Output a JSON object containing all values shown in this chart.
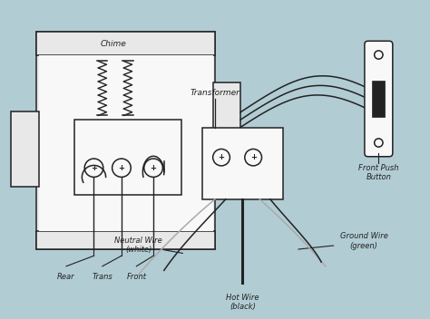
{
  "bg_color": "#b2ccd4",
  "line_color": "#222222",
  "fill_light": "#e8e8e8",
  "fill_white": "#f8f8f8",
  "labels": {
    "chime": "Chime",
    "rear": "Rear",
    "trans": "Trans",
    "front": "Front",
    "transformer": "Transformer",
    "front_push": "Front Push\nButton",
    "neutral": "Neutral Wire\n(white)",
    "hot": "Hot Wire\n(black)",
    "ground": "Ground Wire\n(green)"
  },
  "font_size": 6.5
}
